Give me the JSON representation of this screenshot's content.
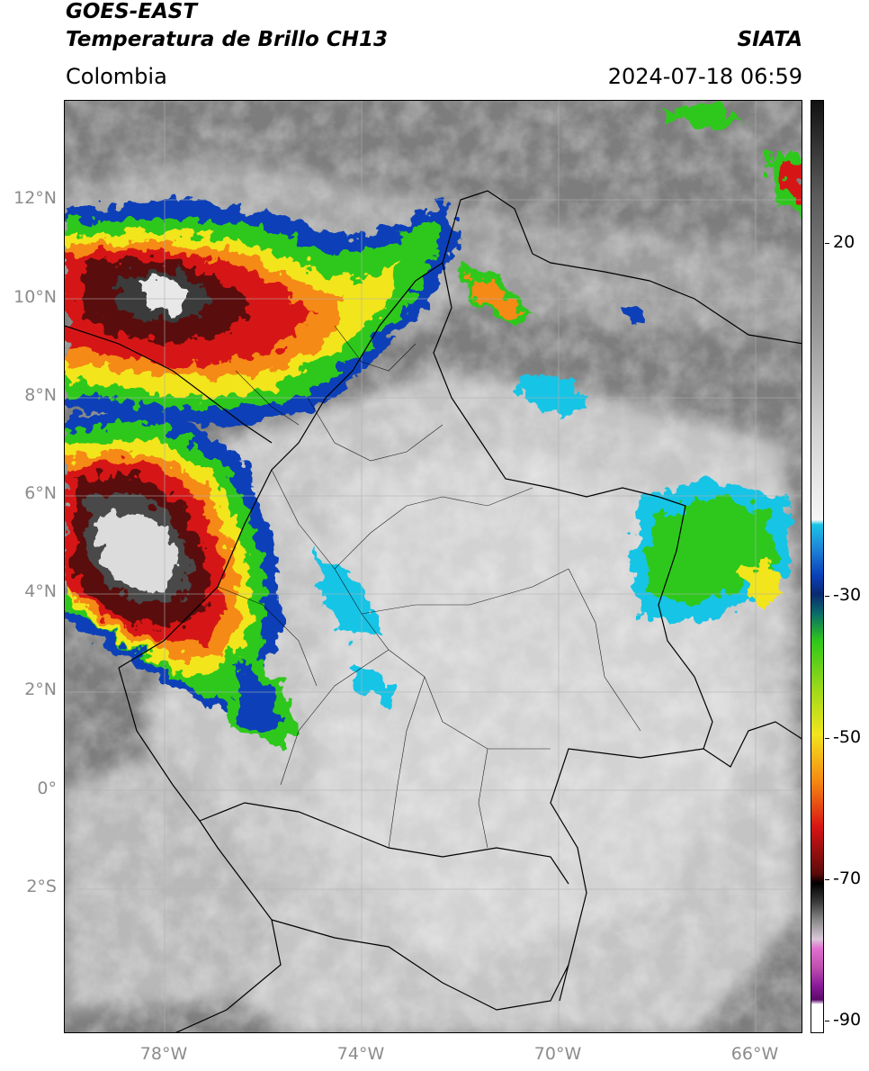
{
  "header": {
    "satellite": "GOES-EAST",
    "product": "Temperatura de Brillo CH13",
    "region": "Colombia",
    "brand": "SIATA",
    "datetime": "2024-07-18 06:59"
  },
  "map": {
    "lat_labels": [
      "12°N",
      "10°N",
      "8°N",
      "6°N",
      "4°N",
      "2°N",
      "0°",
      "2°S"
    ],
    "lon_labels": [
      "78°W",
      "74°W",
      "70°W",
      "66°W"
    ]
  },
  "colorbar": {
    "tick_labels": [
      "20",
      "-30",
      "-50",
      "-70",
      "-90"
    ],
    "colors": {
      "background_gray": "#8a8a8a",
      "cloud_light": "#d9d9d9",
      "cyan": "#19c4e6",
      "blue": "#0a40b8",
      "green": "#2ec81a",
      "yellow": "#f2e51e",
      "orange": "#f58a12",
      "red": "#d61414",
      "dark_red": "#5a0a0a",
      "magenta": "#e070d0",
      "purple": "#8a1a9a"
    }
  }
}
